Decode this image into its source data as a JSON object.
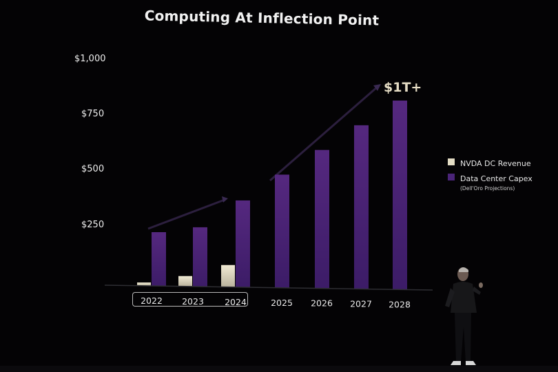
{
  "chart_data": {
    "type": "bar",
    "title": "Computing At Inflection Point",
    "categories": [
      "2022",
      "2023",
      "2024",
      "2025",
      "2026",
      "2027",
      "2028"
    ],
    "series": [
      {
        "name": "NVDA DC Revenue",
        "values": [
          15,
          47,
          100,
          null,
          null,
          null,
          null
        ],
        "color": "#e3dcc4"
      },
      {
        "name": "Data Center Capex",
        "values": [
          245,
          270,
          395,
          515,
          630,
          745,
          860
        ],
        "color": "#4a2478"
      }
    ],
    "ylim": [
      0,
      1050
    ],
    "yticks": [
      {
        "value": 250,
        "label": "$250"
      },
      {
        "value": 500,
        "label": "$500"
      },
      {
        "value": 750,
        "label": "$750"
      },
      {
        "value": 1000,
        "label": "$1,000"
      }
    ],
    "legend_position": "right",
    "annotation": "$1T+",
    "highlighted_categories": [
      "2022",
      "2023",
      "2024"
    ]
  },
  "legend": {
    "revenue_label": "NVDA DC Revenue",
    "capex_label": "Data Center Capex",
    "capex_note": "(Dell'Oro Projections)"
  }
}
